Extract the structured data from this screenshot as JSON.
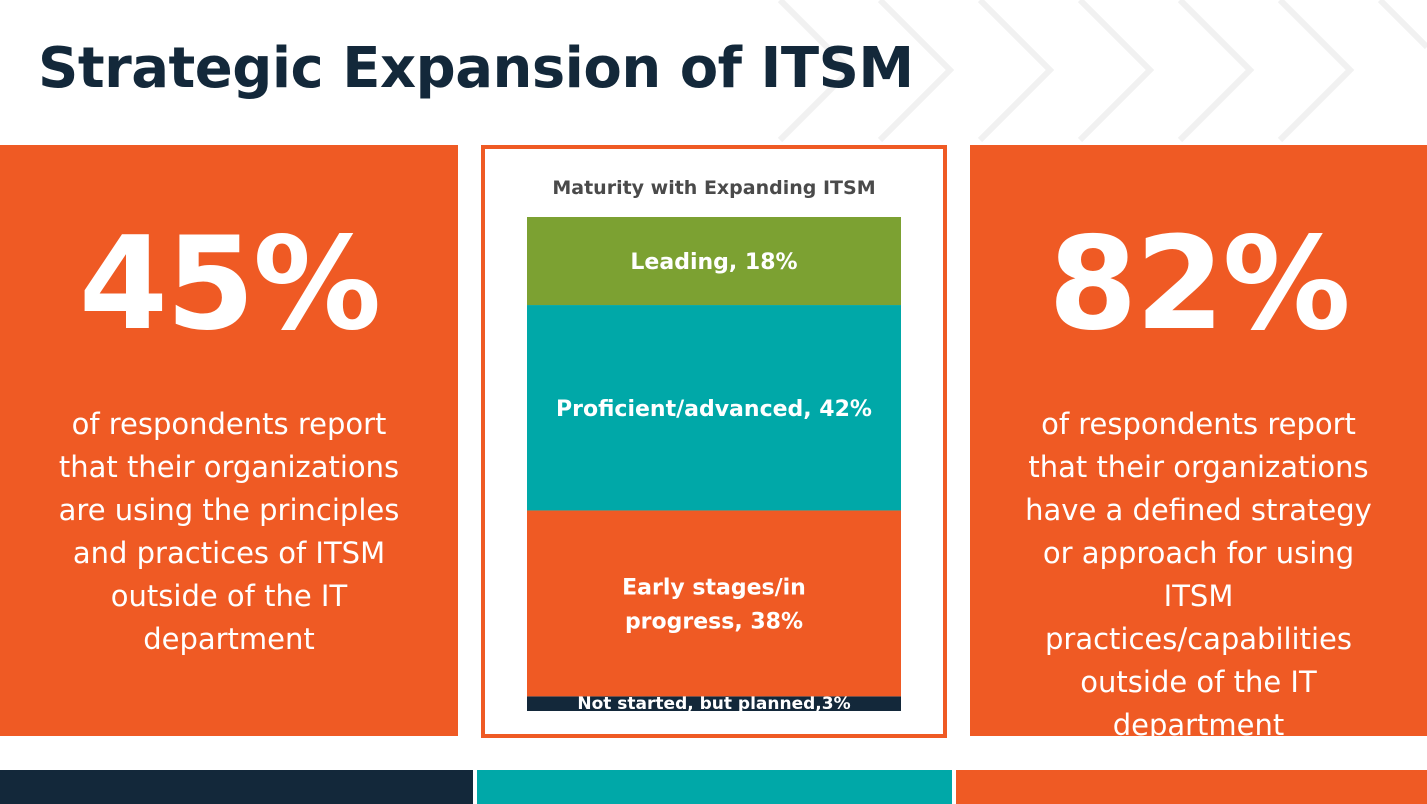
{
  "title": "Strategic Expansion of ITSM",
  "colors": {
    "orange": "#ef5a24",
    "navy": "#13283a",
    "teal": "#00a8a8",
    "green": "#7ca132"
  },
  "left_stat": {
    "value": "45%",
    "description": "of respondents report that their organizations are using the principles and practices of ITSM outside of the IT department"
  },
  "right_stat": {
    "value": "82%",
    "description": "of respondents report that their organizations have a defined strategy or approach for using ITSM practices/capabilities outside of the IT department"
  },
  "chart_data": {
    "type": "bar",
    "title": "Maturity with Expanding ITSM",
    "stacked": true,
    "orientation": "vertical",
    "ylim": [
      0,
      101
    ],
    "series": [
      {
        "name": "Not started, but planned",
        "label": "Not started, but planned,3%",
        "value": 3,
        "color": "#13283a"
      },
      {
        "name": "Early stages/in progress",
        "label": "Early stages/in progress, 38%",
        "value": 38,
        "color": "#ef5a24"
      },
      {
        "name": "Proficient/advanced",
        "label": "Proficient/advanced, 42%",
        "value": 42,
        "color": "#00a8a8"
      },
      {
        "name": "Leading",
        "label": "Leading, 18%",
        "value": 18,
        "color": "#7ca132"
      }
    ]
  }
}
